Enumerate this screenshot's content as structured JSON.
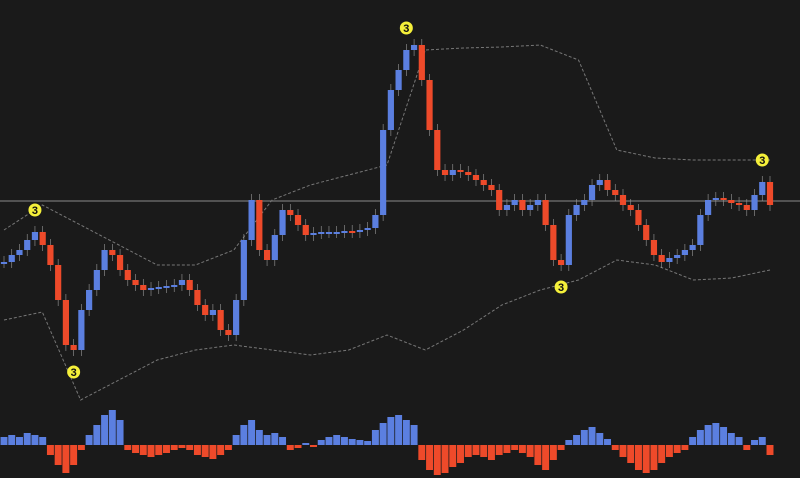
{
  "chart_data": {
    "type": "candlestick",
    "closes": [
      216,
      223,
      228,
      238,
      246,
      233,
      213,
      178,
      133,
      128,
      168,
      188,
      208,
      228,
      223,
      208,
      198,
      193,
      188,
      190,
      191,
      192,
      193,
      198,
      188,
      173,
      163,
      168,
      148,
      143,
      178,
      238,
      278,
      228,
      218,
      243,
      268,
      263,
      253,
      243,
      245,
      246,
      246,
      246,
      247,
      246,
      248,
      250,
      263,
      348,
      388,
      408,
      428,
      433,
      398,
      348,
      308,
      303,
      308,
      306,
      303,
      298,
      293,
      288,
      268,
      273,
      278,
      268,
      273,
      278,
      253,
      218,
      213,
      263,
      273,
      278,
      293,
      298,
      288,
      283,
      273,
      268,
      253,
      238,
      223,
      216,
      220,
      223,
      228,
      233,
      263,
      278,
      280,
      278,
      275,
      273,
      268,
      283,
      296,
      273
    ],
    "up_color": "#5b7fe0",
    "down_color": "#ee4a2a",
    "ylim": [
      0,
      478
    ],
    "level": 277,
    "level_color": "#8a8a8a",
    "bands": {
      "upper": [
        248,
        273,
        253,
        233,
        213,
        213,
        228,
        278,
        293,
        303,
        313,
        428,
        430,
        431,
        433,
        418,
        328,
        320,
        318,
        318,
        318
      ],
      "lower": [
        158,
        166,
        78,
        98,
        118,
        128,
        133,
        128,
        123,
        128,
        143,
        128,
        148,
        173,
        188,
        198,
        218,
        213,
        198,
        200,
        208
      ],
      "color": "#777777"
    },
    "markers": [
      {
        "index": 4,
        "label": "3",
        "position": "above"
      },
      {
        "index": 9,
        "label": "3",
        "position": "below"
      },
      {
        "index": 52,
        "label": "3",
        "position": "above"
      },
      {
        "index": 72,
        "label": "3",
        "position": "below"
      },
      {
        "index": 98,
        "label": "3",
        "position": "above"
      }
    ],
    "marker_color": "#f5f03a",
    "histogram": {
      "values": [
        8,
        10,
        8,
        12,
        10,
        8,
        -10,
        -20,
        -28,
        -20,
        -5,
        10,
        20,
        30,
        35,
        25,
        -5,
        -8,
        -10,
        -12,
        -10,
        -8,
        -5,
        -3,
        -5,
        -10,
        -12,
        -14,
        -10,
        -5,
        10,
        20,
        25,
        15,
        10,
        12,
        8,
        -5,
        -3,
        2,
        -2,
        5,
        8,
        10,
        8,
        6,
        5,
        4,
        15,
        22,
        28,
        30,
        25,
        20,
        -15,
        -25,
        -30,
        -28,
        -22,
        -18,
        -12,
        -10,
        -12,
        -15,
        -10,
        -8,
        -5,
        -8,
        -12,
        -20,
        -25,
        -15,
        -5,
        5,
        10,
        15,
        18,
        12,
        6,
        -5,
        -12,
        -18,
        -25,
        -28,
        -25,
        -18,
        -12,
        -8,
        -5,
        8,
        15,
        20,
        22,
        18,
        12,
        8,
        -5,
        5,
        8,
        -10
      ],
      "ylim": [
        -40,
        40
      ],
      "up_color": "#5b7fe0",
      "down_color": "#ee4a2a"
    }
  }
}
